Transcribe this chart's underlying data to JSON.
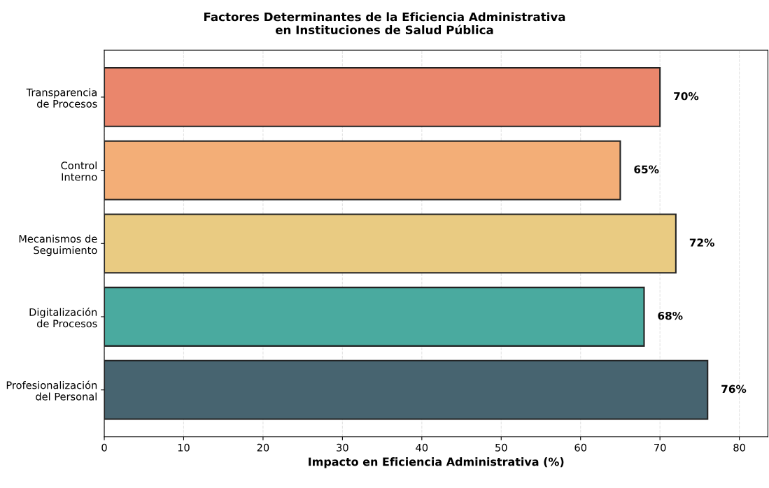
{
  "chart_data": {
    "type": "bar",
    "orientation": "horizontal",
    "title": "Factores Determinantes de la Eficiencia Administrativa\nen Instituciones de Salud Pública",
    "xlabel": "Impacto en Eficiencia Administrativa (%)",
    "categories": [
      "Transparencia\nde Procesos",
      "Control\nInterno",
      "Mecanismos de\nSeguimiento",
      "Digitalización\nde Procesos",
      "Profesionalización\ndel Personal"
    ],
    "values": [
      70,
      65,
      72,
      68,
      76
    ],
    "value_labels": [
      "70%",
      "65%",
      "72%",
      "68%",
      "76%"
    ],
    "colors": [
      "#ea866c",
      "#f3ae77",
      "#e9cb82",
      "#4aaa9f",
      "#476470"
    ],
    "xlim": [
      0,
      83.6
    ],
    "xticks": [
      0,
      10,
      20,
      30,
      40,
      50,
      60,
      70,
      80
    ],
    "grid": "x",
    "legend": false
  }
}
